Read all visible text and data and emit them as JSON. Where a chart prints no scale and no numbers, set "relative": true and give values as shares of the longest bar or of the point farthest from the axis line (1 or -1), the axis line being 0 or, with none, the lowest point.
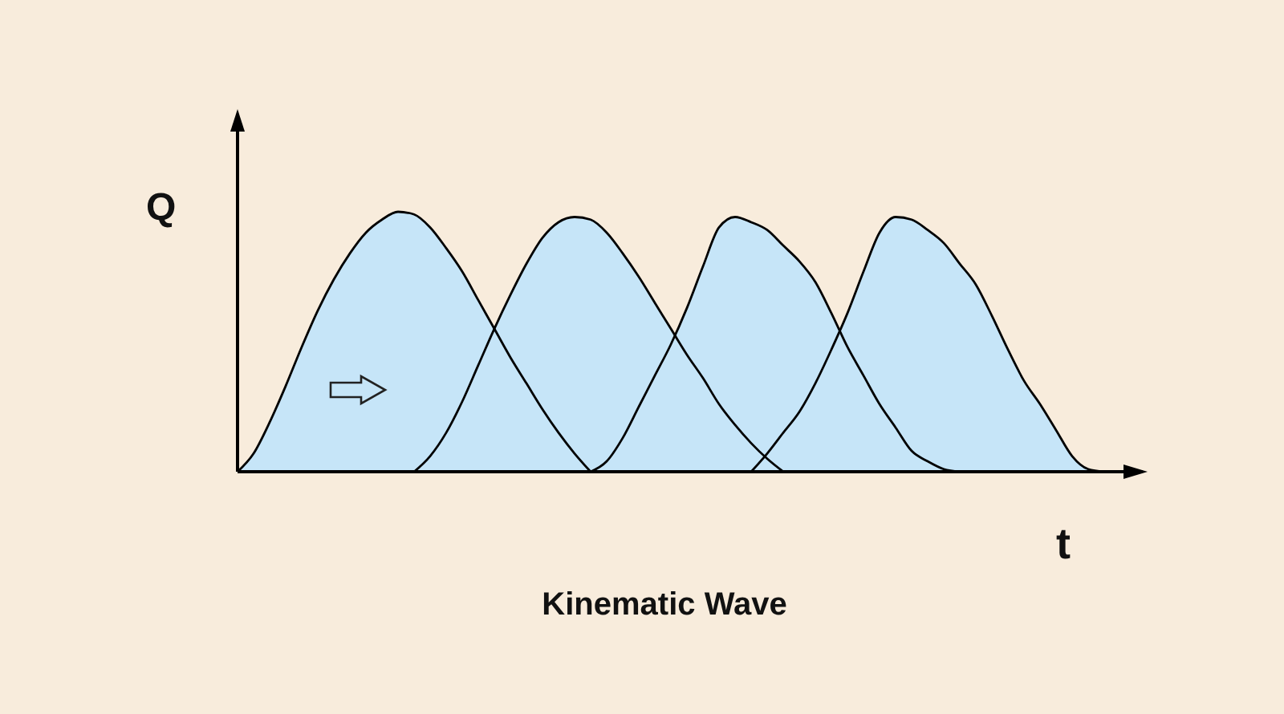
{
  "chart_data": {
    "type": "area",
    "title": "Kinematic Wave",
    "xlabel": "t",
    "ylabel": "Q",
    "relative": true,
    "categories": [
      null,
      null,
      null,
      null,
      null,
      null,
      null,
      null,
      null,
      null,
      null,
      null,
      null,
      null,
      null,
      null,
      null,
      null,
      null,
      null,
      null,
      null,
      null,
      null,
      null,
      null,
      null,
      null,
      null,
      null,
      null,
      null,
      null,
      null,
      null,
      null,
      null,
      null,
      null,
      null,
      null,
      null,
      null,
      null,
      null,
      null,
      null,
      null,
      null,
      null,
      null,
      null,
      null,
      null,
      null
    ],
    "series": [
      {
        "color": "#c6e5f8",
        "values": [
          0,
          0.07,
          0.19,
          0.33,
          0.48,
          0.62,
          0.74,
          0.84,
          0.92,
          0.97,
          1,
          0.99,
          0.94,
          0.86,
          0.77,
          0.66,
          0.55,
          0.44,
          0.34,
          0.24,
          0.15,
          0.07,
          0,
          null,
          null,
          null,
          null,
          null,
          null,
          null,
          null,
          null,
          null,
          null,
          null,
          null,
          null,
          null,
          null,
          null,
          null,
          null,
          null,
          null,
          null,
          null,
          null,
          null,
          null,
          null,
          null,
          null,
          null,
          null,
          null
        ]
      },
      {
        "color": "#c6e5f8",
        "values": [
          null,
          null,
          null,
          null,
          null,
          null,
          null,
          null,
          null,
          null,
          null,
          0,
          0.06,
          0.15,
          0.27,
          0.41,
          0.55,
          0.68,
          0.8,
          0.9,
          0.96,
          0.98,
          0.97,
          0.92,
          0.84,
          0.75,
          0.65,
          0.55,
          0.45,
          0.36,
          0.26,
          0.18,
          0.11,
          0.05,
          0,
          null,
          null,
          null,
          null,
          null,
          null,
          null,
          null,
          null,
          null,
          null,
          null,
          null,
          null,
          null,
          null,
          null,
          null,
          null,
          null
        ]
      },
      {
        "color": "#c6e5f8",
        "values": [
          null,
          null,
          null,
          null,
          null,
          null,
          null,
          null,
          null,
          null,
          null,
          null,
          null,
          null,
          null,
          null,
          null,
          null,
          null,
          null,
          null,
          null,
          0,
          0.04,
          0.13,
          0.25,
          0.37,
          0.49,
          0.63,
          0.79,
          0.94,
          0.98,
          0.96,
          0.93,
          0.87,
          0.81,
          0.73,
          0.61,
          0.48,
          0.37,
          0.26,
          0.17,
          0.08,
          0.04,
          0.01,
          0,
          null,
          null,
          null,
          null,
          null,
          null,
          null,
          null,
          null
        ]
      },
      {
        "color": "#c6e5f8",
        "values": [
          null,
          null,
          null,
          null,
          null,
          null,
          null,
          null,
          null,
          null,
          null,
          null,
          null,
          null,
          null,
          null,
          null,
          null,
          null,
          null,
          null,
          null,
          null,
          null,
          null,
          null,
          null,
          null,
          null,
          null,
          null,
          null,
          0,
          0.07,
          0.15,
          0.23,
          0.34,
          0.47,
          0.61,
          0.77,
          0.92,
          0.98,
          0.97,
          0.93,
          0.88,
          0.8,
          0.72,
          0.6,
          0.47,
          0.35,
          0.26,
          0.16,
          0.06,
          0.01,
          0
        ]
      }
    ]
  }
}
